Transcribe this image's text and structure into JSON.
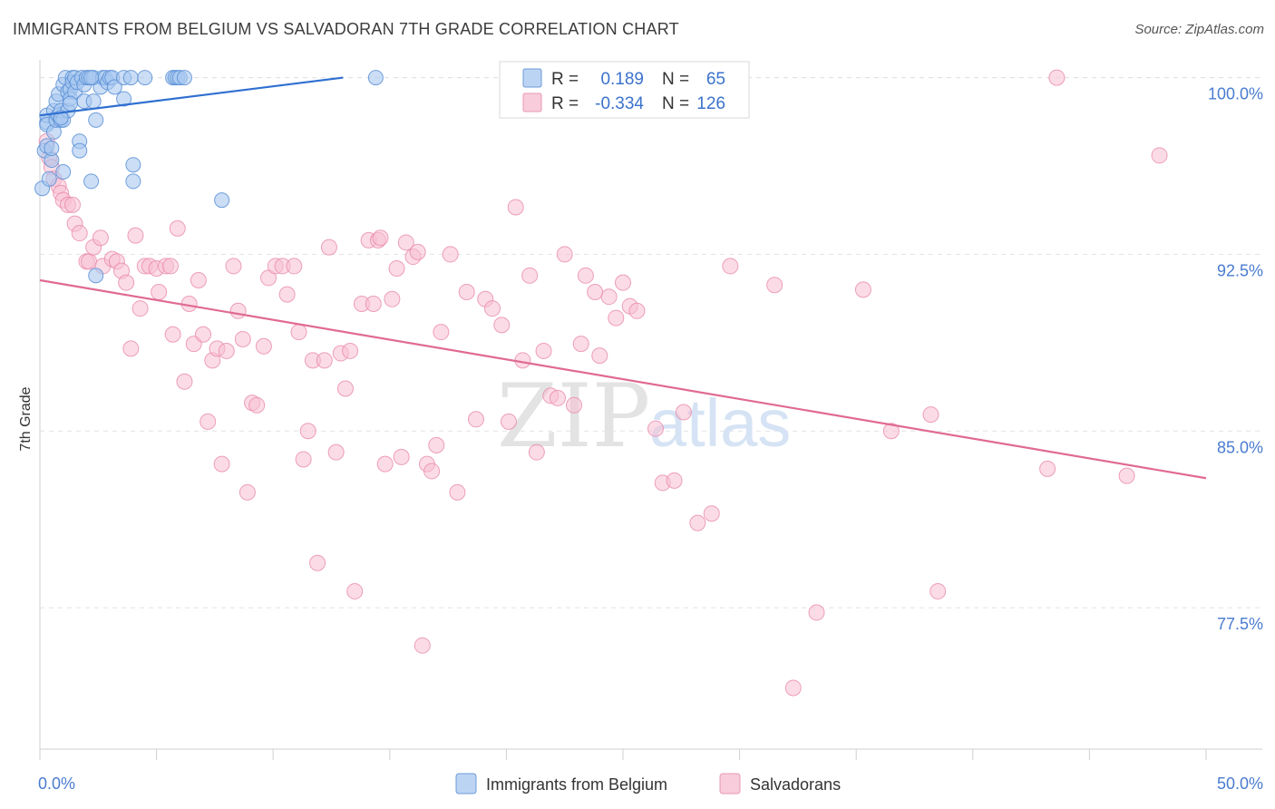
{
  "title": "IMMIGRANTS FROM BELGIUM VS SALVADORAN 7TH GRADE CORRELATION CHART",
  "source": "Source: ZipAtlas.com",
  "watermark": {
    "zip": "ZIP",
    "atlas": "atlas"
  },
  "legend_top": {
    "rows": [
      {
        "r_label": "R =",
        "r_value": "0.189",
        "n_label": "N =",
        "n_value": "65"
      },
      {
        "r_label": "R =",
        "r_value": "-0.334",
        "n_label": "N =",
        "n_value": "126"
      }
    ]
  },
  "legend_bottom": [
    "Immigrants from Belgium",
    "Salvadorans"
  ],
  "colors": {
    "blue_fill": "#a8c8f0",
    "blue_stroke": "#5b8fd6",
    "blue_line": "#2f6fd0",
    "pink_fill": "#f7c0d2",
    "pink_stroke": "#e88aaa",
    "pink_line": "#e06a92",
    "tick_text": "#4a7cd0"
  },
  "chart_data": {
    "type": "scatter",
    "title": "IMMIGRANTS FROM BELGIUM VS SALVADORAN 7TH GRADE CORRELATION CHART",
    "xlabel": "",
    "ylabel": "7th Grade",
    "xlim": [
      0,
      50
    ],
    "ylim": [
      71.5,
      100.6
    ],
    "x_tick_labels": [
      "0.0%",
      "50.0%"
    ],
    "y_ticks": [
      77.5,
      85.0,
      92.5,
      100.0
    ],
    "y_tick_labels": [
      "77.5%",
      "85.0%",
      "92.5%",
      "100.0%"
    ],
    "grid": "horizontal dashed",
    "series": [
      {
        "name": "Immigrants from Belgium",
        "r": 0.189,
        "n": 65,
        "trend": {
          "x": [
            0.0,
            13.0
          ],
          "y": [
            98.4,
            100.0
          ]
        },
        "points": [
          [
            0.1,
            95.3
          ],
          [
            0.2,
            96.9
          ],
          [
            0.3,
            97.1
          ],
          [
            0.3,
            98.1
          ],
          [
            0.3,
            98.4
          ],
          [
            0.3,
            98.0
          ],
          [
            0.4,
            95.7
          ],
          [
            0.5,
            96.5
          ],
          [
            0.6,
            97.7
          ],
          [
            0.6,
            98.6
          ],
          [
            0.7,
            98.2
          ],
          [
            0.7,
            99.0
          ],
          [
            0.8,
            99.3
          ],
          [
            0.8,
            98.4
          ],
          [
            0.9,
            98.2
          ],
          [
            0.9,
            98.6
          ],
          [
            1.0,
            99.7
          ],
          [
            1.0,
            98.2
          ],
          [
            1.1,
            100.0
          ],
          [
            1.2,
            99.4
          ],
          [
            1.2,
            98.6
          ],
          [
            1.3,
            99.5
          ],
          [
            1.3,
            99.1
          ],
          [
            1.4,
            100.0
          ],
          [
            1.4,
            99.8
          ],
          [
            1.5,
            99.4
          ],
          [
            1.5,
            100.0
          ],
          [
            1.6,
            99.8
          ],
          [
            1.7,
            97.3
          ],
          [
            1.7,
            96.9
          ],
          [
            1.8,
            100.0
          ],
          [
            1.9,
            99.0
          ],
          [
            1.9,
            99.7
          ],
          [
            2.0,
            100.0
          ],
          [
            2.1,
            100.0
          ],
          [
            2.2,
            95.6
          ],
          [
            2.3,
            99.0
          ],
          [
            2.3,
            100.0
          ],
          [
            2.4,
            98.2
          ],
          [
            2.4,
            91.6
          ],
          [
            2.6,
            99.6
          ],
          [
            2.7,
            100.0
          ],
          [
            2.8,
            100.0
          ],
          [
            2.9,
            99.8
          ],
          [
            3.0,
            100.0
          ],
          [
            3.1,
            100.0
          ],
          [
            3.2,
            99.6
          ],
          [
            3.6,
            99.1
          ],
          [
            3.6,
            100.0
          ],
          [
            3.9,
            100.0
          ],
          [
            4.0,
            95.6
          ],
          [
            4.0,
            96.3
          ],
          [
            4.5,
            100.0
          ],
          [
            5.7,
            100.0
          ],
          [
            5.8,
            100.0
          ],
          [
            5.9,
            100.0
          ],
          [
            6.0,
            100.0
          ],
          [
            6.2,
            100.0
          ],
          [
            7.8,
            94.8
          ],
          [
            14.4,
            100.0
          ],
          [
            0.5,
            97.0
          ],
          [
            0.9,
            98.3
          ],
          [
            1.3,
            98.9
          ],
          [
            2.2,
            100.0
          ],
          [
            1.0,
            96.0
          ]
        ]
      },
      {
        "name": "Salvadorans",
        "r": -0.334,
        "n": 126,
        "trend": {
          "x": [
            0.0,
            50.0
          ],
          "y": [
            91.4,
            83.0
          ]
        },
        "points": [
          [
            0.3,
            97.3
          ],
          [
            0.4,
            96.6
          ],
          [
            0.5,
            96.2
          ],
          [
            0.6,
            95.7
          ],
          [
            0.8,
            95.4
          ],
          [
            0.9,
            95.1
          ],
          [
            1.0,
            94.8
          ],
          [
            1.2,
            94.6
          ],
          [
            1.4,
            94.6
          ],
          [
            1.5,
            93.8
          ],
          [
            1.7,
            93.4
          ],
          [
            2.0,
            92.2
          ],
          [
            2.1,
            92.2
          ],
          [
            2.3,
            92.8
          ],
          [
            2.6,
            93.2
          ],
          [
            2.7,
            92.0
          ],
          [
            3.1,
            92.3
          ],
          [
            3.3,
            92.2
          ],
          [
            3.5,
            91.8
          ],
          [
            3.7,
            91.3
          ],
          [
            3.9,
            88.5
          ],
          [
            4.1,
            93.3
          ],
          [
            4.3,
            90.2
          ],
          [
            4.5,
            92.0
          ],
          [
            4.7,
            92.0
          ],
          [
            5.0,
            91.9
          ],
          [
            5.1,
            90.9
          ],
          [
            5.4,
            92.0
          ],
          [
            5.6,
            92.0
          ],
          [
            5.7,
            89.1
          ],
          [
            5.9,
            93.6
          ],
          [
            6.2,
            87.1
          ],
          [
            6.4,
            90.4
          ],
          [
            6.6,
            88.7
          ],
          [
            6.8,
            91.4
          ],
          [
            7.0,
            89.1
          ],
          [
            7.2,
            85.4
          ],
          [
            7.4,
            88.0
          ],
          [
            7.6,
            88.5
          ],
          [
            7.8,
            83.6
          ],
          [
            8.0,
            88.4
          ],
          [
            8.3,
            92.0
          ],
          [
            8.5,
            90.1
          ],
          [
            8.7,
            88.9
          ],
          [
            8.9,
            82.4
          ],
          [
            9.1,
            86.2
          ],
          [
            9.3,
            86.1
          ],
          [
            9.6,
            88.6
          ],
          [
            9.8,
            91.5
          ],
          [
            10.1,
            92.0
          ],
          [
            10.4,
            92.0
          ],
          [
            10.6,
            90.8
          ],
          [
            10.9,
            92.0
          ],
          [
            11.1,
            89.2
          ],
          [
            11.3,
            83.8
          ],
          [
            11.5,
            85.0
          ],
          [
            11.7,
            88.0
          ],
          [
            11.9,
            79.4
          ],
          [
            12.2,
            88.0
          ],
          [
            12.4,
            92.8
          ],
          [
            12.7,
            84.1
          ],
          [
            12.9,
            88.3
          ],
          [
            13.1,
            86.8
          ],
          [
            13.3,
            88.4
          ],
          [
            13.5,
            78.2
          ],
          [
            13.8,
            90.4
          ],
          [
            14.1,
            93.1
          ],
          [
            14.3,
            90.4
          ],
          [
            14.5,
            93.1
          ],
          [
            14.8,
            83.6
          ],
          [
            15.1,
            90.6
          ],
          [
            15.3,
            91.9
          ],
          [
            15.5,
            83.9
          ],
          [
            15.7,
            93.0
          ],
          [
            16.0,
            92.4
          ],
          [
            16.2,
            92.6
          ],
          [
            16.4,
            75.9
          ],
          [
            16.6,
            83.6
          ],
          [
            16.8,
            83.3
          ],
          [
            17.0,
            84.4
          ],
          [
            17.2,
            89.2
          ],
          [
            17.6,
            92.5
          ],
          [
            17.9,
            82.4
          ],
          [
            18.3,
            90.9
          ],
          [
            18.7,
            85.5
          ],
          [
            19.1,
            90.6
          ],
          [
            19.4,
            90.2
          ],
          [
            19.8,
            89.5
          ],
          [
            20.1,
            85.4
          ],
          [
            20.4,
            94.5
          ],
          [
            20.7,
            88.0
          ],
          [
            21.0,
            91.6
          ],
          [
            21.3,
            84.1
          ],
          [
            21.6,
            88.4
          ],
          [
            21.9,
            86.5
          ],
          [
            22.2,
            86.4
          ],
          [
            22.5,
            92.5
          ],
          [
            22.9,
            86.1
          ],
          [
            23.2,
            88.7
          ],
          [
            23.4,
            91.6
          ],
          [
            23.8,
            90.9
          ],
          [
            24.0,
            88.2
          ],
          [
            24.4,
            90.7
          ],
          [
            24.7,
            89.8
          ],
          [
            25.0,
            91.3
          ],
          [
            25.3,
            90.3
          ],
          [
            25.6,
            90.1
          ],
          [
            26.4,
            85.1
          ],
          [
            26.7,
            82.8
          ],
          [
            27.2,
            82.9
          ],
          [
            27.6,
            85.8
          ],
          [
            28.2,
            81.1
          ],
          [
            28.8,
            81.5
          ],
          [
            29.6,
            92.0
          ],
          [
            31.5,
            91.2
          ],
          [
            32.3,
            74.1
          ],
          [
            33.3,
            77.3
          ],
          [
            35.3,
            91.0
          ],
          [
            38.2,
            85.7
          ],
          [
            36.5,
            85.0
          ],
          [
            38.5,
            78.2
          ],
          [
            43.2,
            83.4
          ],
          [
            46.6,
            83.1
          ],
          [
            43.6,
            100.0
          ],
          [
            48.0,
            96.7
          ],
          [
            14.6,
            93.2
          ]
        ]
      }
    ]
  }
}
